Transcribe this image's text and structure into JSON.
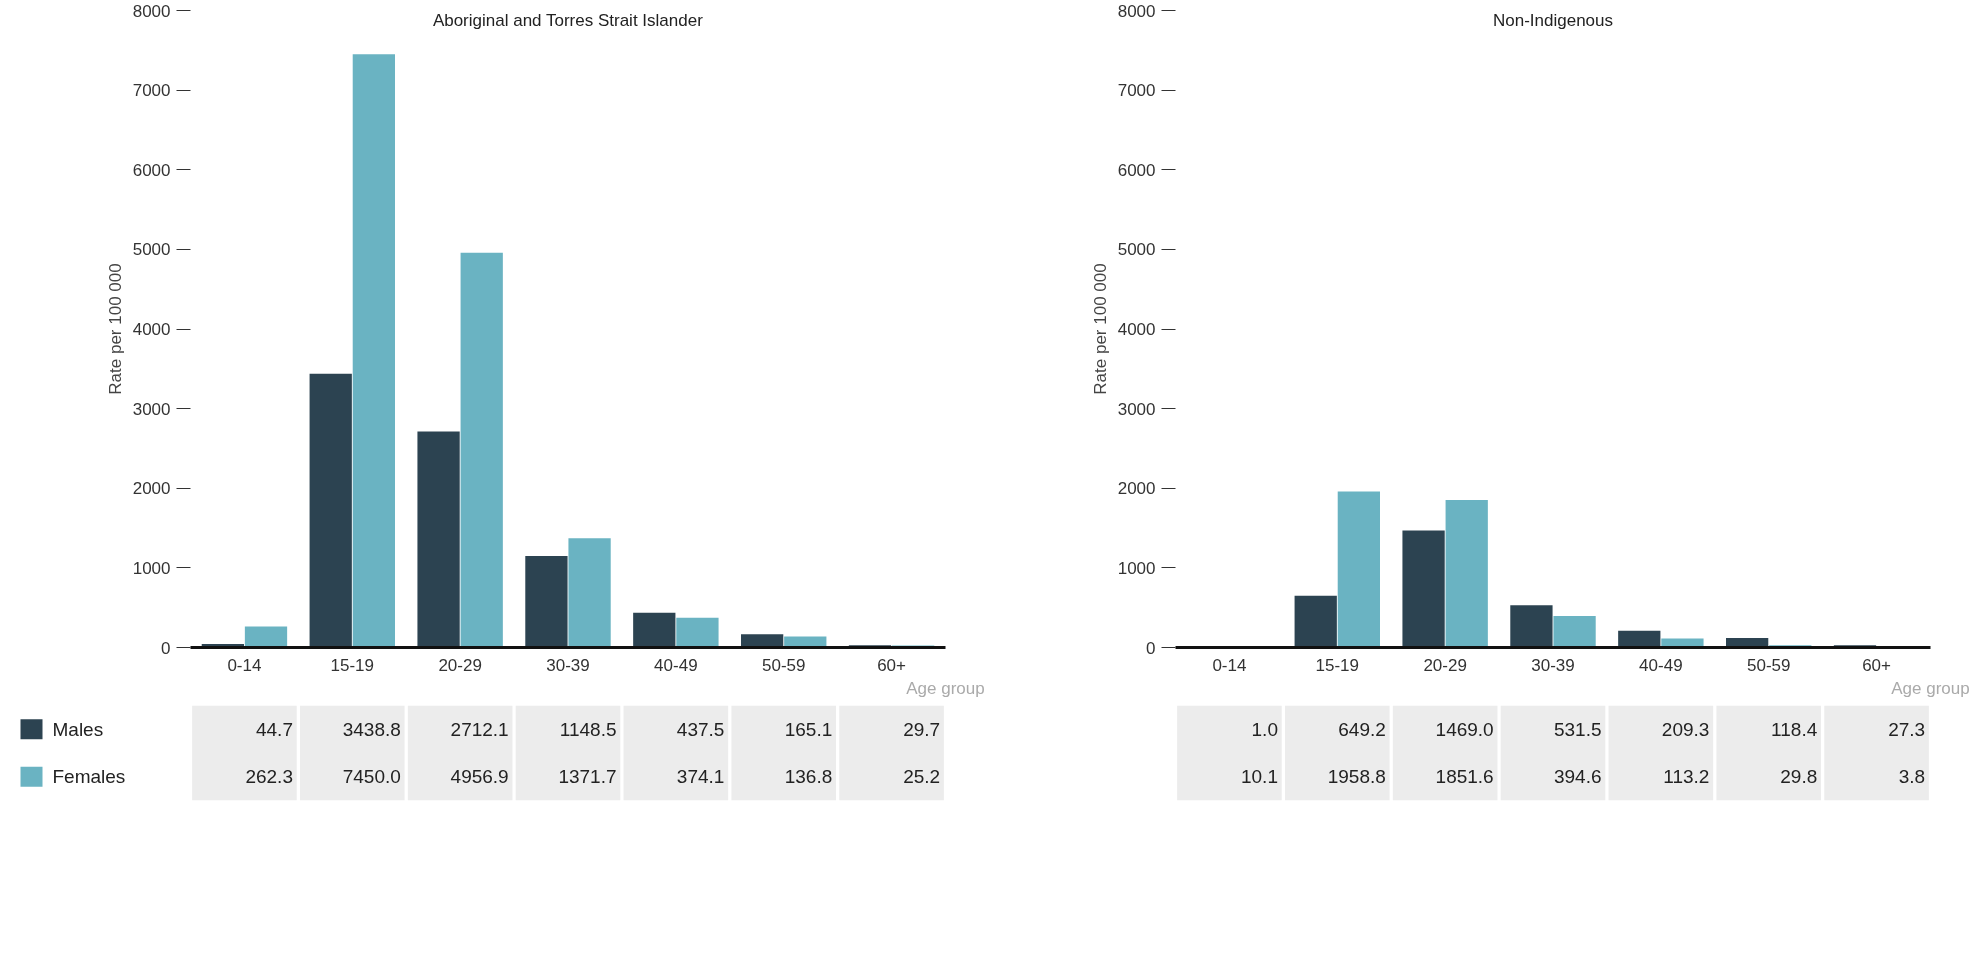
{
  "chart_data": [
    {
      "type": "bar",
      "title": "Aboriginal and Torres Strait Islander",
      "xlabel": "Age group",
      "ylabel": "Rate per 100 000",
      "categories": [
        "0-14",
        "15-19",
        "20-29",
        "30-39",
        "40-49",
        "50-59",
        "60+"
      ],
      "series": [
        {
          "name": "Males",
          "color": "#2c4351",
          "values": [
            44.7,
            3438.8,
            2712.1,
            1148.5,
            437.5,
            165.1,
            29.7
          ],
          "value_labels": [
            "44.7",
            "3438.8",
            "2712.1",
            "1148.5",
            "437.5",
            "165.1",
            "29.7"
          ]
        },
        {
          "name": "Females",
          "color": "#6ab3c2",
          "values": [
            262.3,
            7450.0,
            4956.9,
            1371.7,
            374.1,
            136.8,
            25.2
          ],
          "value_labels": [
            "262.3",
            "7450.0",
            "4956.9",
            "1371.7",
            "374.1",
            "136.8",
            "25.2"
          ]
        }
      ],
      "ylim": [
        0,
        8000
      ],
      "yticks": [
        {
          "value": 0,
          "label": "0"
        },
        {
          "value": 1000,
          "label": "1000"
        },
        {
          "value": 2000,
          "label": "2000"
        },
        {
          "value": 3000,
          "label": "3000"
        },
        {
          "value": 4000,
          "label": "4000"
        },
        {
          "value": 5000,
          "label": "5000"
        },
        {
          "value": 6000,
          "label": "6000"
        },
        {
          "value": 7000,
          "label": "7000"
        },
        {
          "value": 8000,
          "label": "8000"
        }
      ],
      "grid": false,
      "legend": "bottom left"
    },
    {
      "type": "bar",
      "title": "Non-Indigenous",
      "xlabel": "Age group",
      "ylabel": "Rate per 100 000",
      "categories": [
        "0-14",
        "15-19",
        "20-29",
        "30-39",
        "40-49",
        "50-59",
        "60+"
      ],
      "series": [
        {
          "color": "#2c4351",
          "values": [
            1.0,
            649.2,
            1469.0,
            531.5,
            209.3,
            118.4,
            27.3
          ],
          "value_labels": [
            "1.0",
            "649.2",
            "1469.0",
            "531.5",
            "209.3",
            "118.4",
            "27.3"
          ]
        },
        {
          "color": "#6ab3c2",
          "values": [
            10.1,
            1958.8,
            1851.6,
            394.6,
            113.2,
            29.8,
            3.8
          ],
          "value_labels": [
            "10.1",
            "1958.8",
            "1851.6",
            "394.6",
            "113.2",
            "29.8",
            "3.8"
          ]
        }
      ],
      "ylim": [
        0,
        8000
      ],
      "yticks": [
        {
          "value": 0,
          "label": "0"
        },
        {
          "value": 1000,
          "label": "1000"
        },
        {
          "value": 2000,
          "label": "2000"
        },
        {
          "value": 3000,
          "label": "3000"
        },
        {
          "value": 4000,
          "label": "4000"
        },
        {
          "value": 5000,
          "label": "5000"
        },
        {
          "value": 6000,
          "label": "6000"
        },
        {
          "value": 7000,
          "label": "7000"
        },
        {
          "value": 8000,
          "label": "8000"
        }
      ],
      "grid": false
    }
  ]
}
